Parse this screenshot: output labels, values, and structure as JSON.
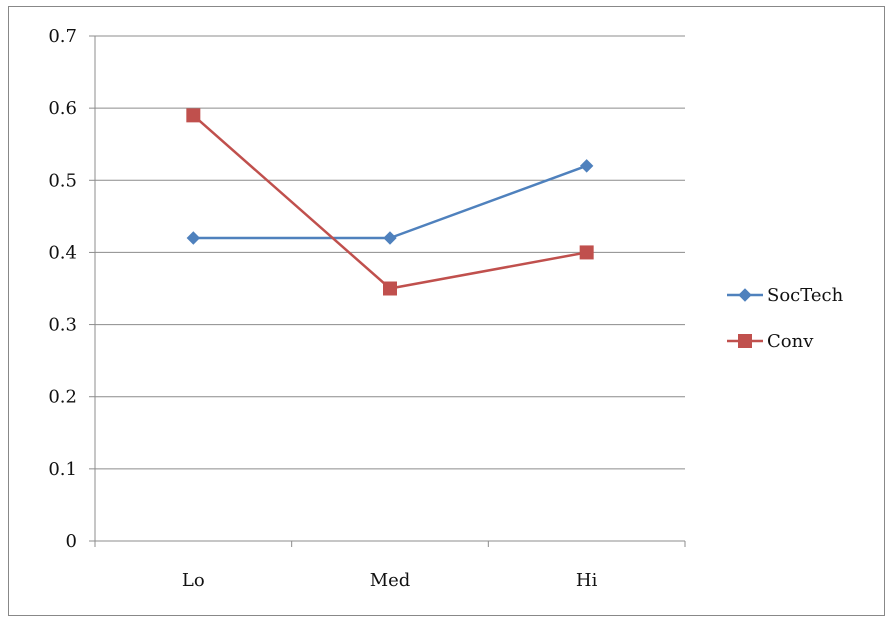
{
  "chart_data": {
    "type": "line",
    "title": "",
    "xlabel": "",
    "ylabel": "",
    "categories": [
      "Lo",
      "Med",
      "Hi"
    ],
    "ylim": [
      0,
      0.7
    ],
    "yticks": [
      "0",
      "0.1",
      "0.2",
      "0.3",
      "0.4",
      "0.5",
      "0.6",
      "0.7"
    ],
    "grid": true,
    "legend_position": "right",
    "series": [
      {
        "name": "SocTech",
        "values": [
          0.42,
          0.42,
          0.52
        ],
        "color": "#4F81BD",
        "marker": "diamond"
      },
      {
        "name": "Conv",
        "values": [
          0.59,
          0.35,
          0.4
        ],
        "color": "#C0504D",
        "marker": "square"
      }
    ]
  }
}
